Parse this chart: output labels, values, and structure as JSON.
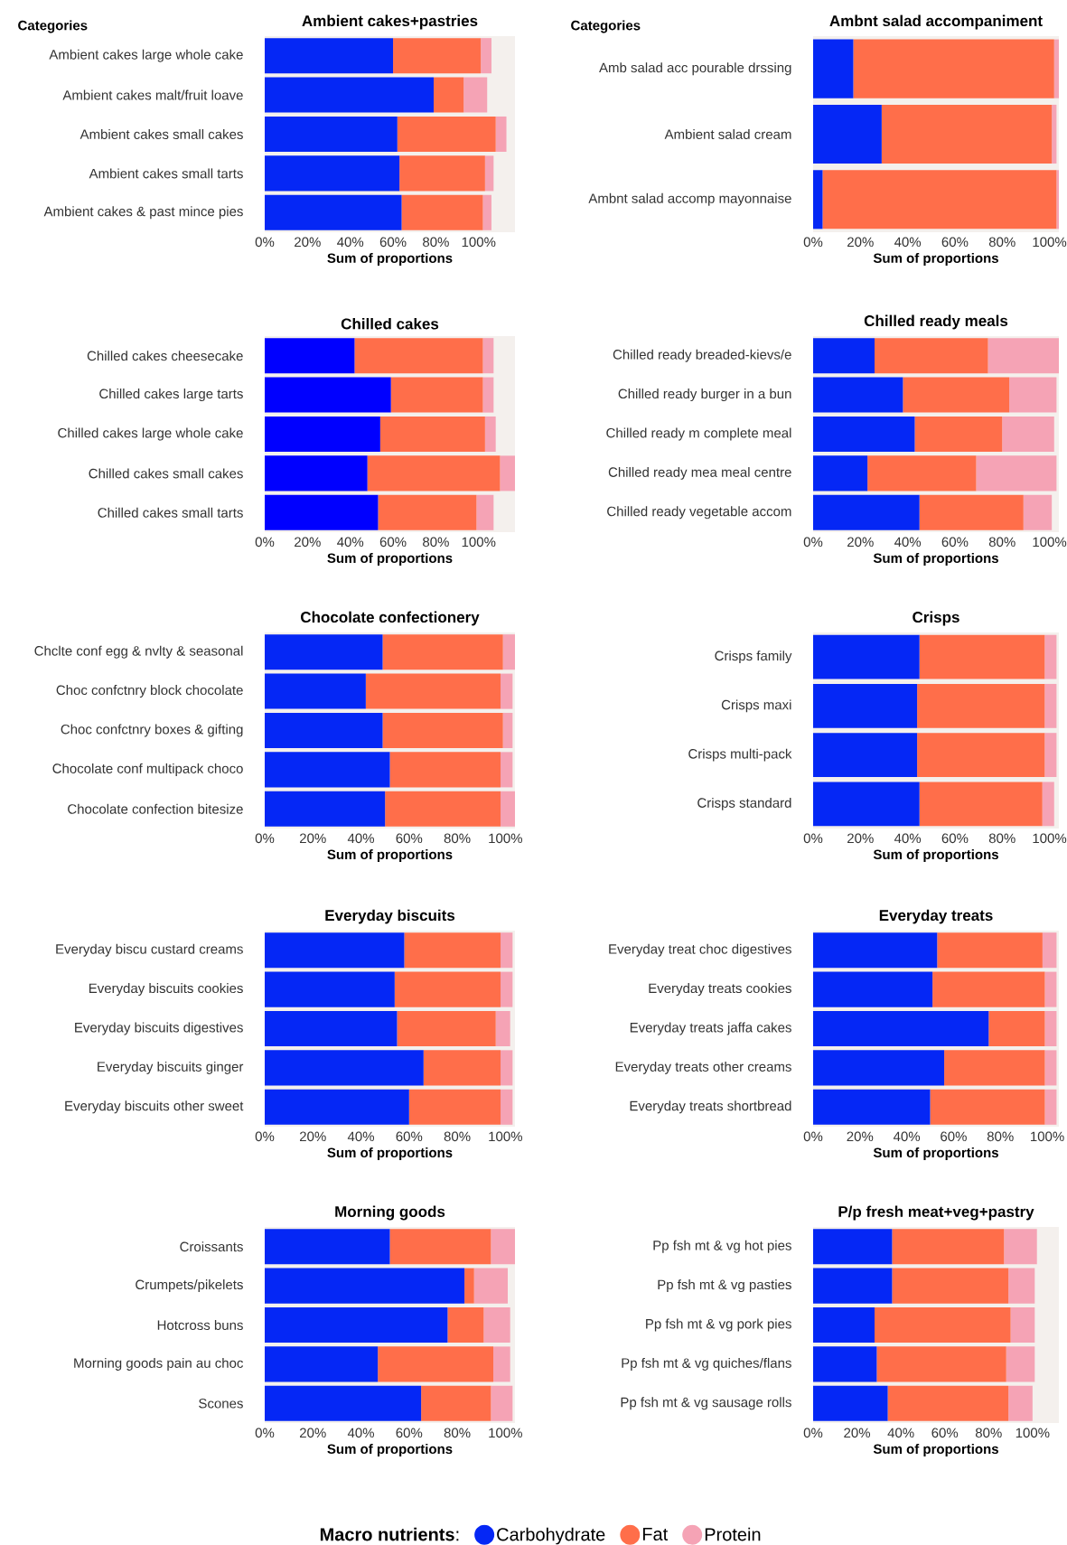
{
  "chart_data": [
    {
      "type": "bar",
      "orientation": "horizontal",
      "stacked": true,
      "title": "Ambient cakes+pastries",
      "xlabel": "Sum of proportions",
      "ylabel": "Categories",
      "categories": [
        "Ambient cakes large whole cake",
        "Ambient cakes malt/fruit loave",
        "Ambient cakes small cakes",
        "Ambient cakes small tarts",
        "Ambient cakes & past mince pies"
      ],
      "xlim": [
        0,
        117
      ],
      "xticks": [
        {
          "value": 0,
          "label": "0%"
        },
        {
          "value": 20,
          "label": "20%"
        },
        {
          "value": 40,
          "label": "40%"
        },
        {
          "value": 60,
          "label": "60%"
        },
        {
          "value": 80,
          "label": "80%"
        },
        {
          "value": 100,
          "label": "100%"
        }
      ],
      "series": [
        {
          "color": "#0527f5",
          "values": [
            60,
            79,
            62,
            63,
            64
          ]
        },
        {
          "color": "#ff6e4a",
          "values": [
            41,
            14,
            46,
            40,
            38
          ]
        },
        {
          "color": "#f5a3b5",
          "values": [
            5,
            11,
            5,
            4,
            4
          ]
        }
      ]
    },
    {
      "type": "bar",
      "orientation": "horizontal",
      "stacked": true,
      "title": "Ambnt salad accompaniment",
      "xlabel": "Sum of proportions",
      "ylabel": "Categories",
      "categories": [
        "Amb salad acc pourable drssing",
        "Ambient salad cream",
        "Ambnt salad accomp mayonnaise"
      ],
      "xlim": [
        0,
        104
      ],
      "xticks": [
        {
          "value": 0,
          "label": "0%"
        },
        {
          "value": 20,
          "label": "20%"
        },
        {
          "value": 40,
          "label": "40%"
        },
        {
          "value": 60,
          "label": "60%"
        },
        {
          "value": 80,
          "label": "80%"
        },
        {
          "value": 100,
          "label": "100%"
        }
      ],
      "series": [
        {
          "color": "#0527f5",
          "values": [
            17,
            29,
            4
          ]
        },
        {
          "color": "#ff6e4a",
          "values": [
            85,
            72,
            99
          ]
        },
        {
          "color": "#f5a3b5",
          "values": [
            2,
            2,
            1
          ]
        }
      ]
    },
    {
      "type": "bar",
      "orientation": "horizontal",
      "stacked": true,
      "title": "Chilled cakes",
      "xlabel": "Sum of proportions",
      "categories": [
        "Chilled cakes cheesecake",
        "Chilled cakes large tarts",
        "Chilled cakes large whole cake",
        "Chilled cakes small cakes",
        "Chilled cakes small tarts"
      ],
      "xlim": [
        0,
        117
      ],
      "xticks": [
        {
          "value": 0,
          "label": "0%"
        },
        {
          "value": 20,
          "label": "20%"
        },
        {
          "value": 40,
          "label": "40%"
        },
        {
          "value": 60,
          "label": "60%"
        },
        {
          "value": 80,
          "label": "80%"
        },
        {
          "value": 100,
          "label": "100%"
        }
      ],
      "series": [
        {
          "color": "#0000ff",
          "values": [
            42,
            59,
            54,
            48,
            53
          ]
        },
        {
          "color": "#ff6e4a",
          "values": [
            60,
            43,
            49,
            62,
            46
          ]
        },
        {
          "color": "#f5a3b5",
          "values": [
            5,
            5,
            5,
            7,
            8
          ]
        }
      ]
    },
    {
      "type": "bar",
      "orientation": "horizontal",
      "stacked": true,
      "title": "Chilled ready meals",
      "xlabel": "Sum of proportions",
      "categories": [
        "Chilled ready breaded-kievs/e",
        "Chilled ready burger in a bun",
        "Chilled ready m complete meal",
        "Chilled ready mea meal centre",
        "Chilled ready vegetable accom"
      ],
      "xlim": [
        0,
        104
      ],
      "xticks": [
        {
          "value": 0,
          "label": "0%"
        },
        {
          "value": 20,
          "label": "20%"
        },
        {
          "value": 40,
          "label": "40%"
        },
        {
          "value": 60,
          "label": "60%"
        },
        {
          "value": 80,
          "label": "80%"
        },
        {
          "value": 100,
          "label": "100%"
        }
      ],
      "series": [
        {
          "color": "#0527f5",
          "values": [
            26,
            38,
            43,
            23,
            45
          ]
        },
        {
          "color": "#ff6e4a",
          "values": [
            48,
            45,
            37,
            46,
            44
          ]
        },
        {
          "color": "#f5a3b5",
          "values": [
            30,
            20,
            22,
            34,
            12
          ]
        }
      ]
    },
    {
      "type": "bar",
      "orientation": "horizontal",
      "stacked": true,
      "title": "Chocolate confectionery",
      "xlabel": "Sum of proportions",
      "categories": [
        "Chclte conf egg & nvlty & seasonal",
        "Choc confctnry block chocolate",
        "Choc confctnry boxes & gifting",
        "Chocolate conf multipack choco",
        "Chocolate confection bitesize"
      ],
      "xlim": [
        0,
        104
      ],
      "xticks": [
        {
          "value": 0,
          "label": "0%"
        },
        {
          "value": 20,
          "label": "20%"
        },
        {
          "value": 40,
          "label": "40%"
        },
        {
          "value": 60,
          "label": "60%"
        },
        {
          "value": 80,
          "label": "80%"
        },
        {
          "value": 100,
          "label": "100%"
        }
      ],
      "series": [
        {
          "color": "#0527f5",
          "values": [
            49,
            42,
            49,
            52,
            50
          ]
        },
        {
          "color": "#ff6e4a",
          "values": [
            50,
            56,
            50,
            46,
            48
          ]
        },
        {
          "color": "#f5a3b5",
          "values": [
            5,
            5,
            4,
            5,
            6
          ]
        }
      ]
    },
    {
      "type": "bar",
      "orientation": "horizontal",
      "stacked": true,
      "title": "Crisps",
      "xlabel": "Sum of proportions",
      "categories": [
        "Crisps family",
        "Crisps maxi",
        "Crisps multi-pack",
        "Crisps standard"
      ],
      "xlim": [
        0,
        104
      ],
      "xticks": [
        {
          "value": 0,
          "label": "0%"
        },
        {
          "value": 20,
          "label": "20%"
        },
        {
          "value": 40,
          "label": "40%"
        },
        {
          "value": 60,
          "label": "60%"
        },
        {
          "value": 80,
          "label": "80%"
        },
        {
          "value": 100,
          "label": "100%"
        }
      ],
      "series": [
        {
          "color": "#0527f5",
          "values": [
            45,
            44,
            44,
            45
          ]
        },
        {
          "color": "#ff6e4a",
          "values": [
            53,
            54,
            54,
            52
          ]
        },
        {
          "color": "#f5a3b5",
          "values": [
            5,
            5,
            5,
            5
          ]
        }
      ]
    },
    {
      "type": "bar",
      "orientation": "horizontal",
      "stacked": true,
      "title": "Everyday biscuits",
      "xlabel": "Sum of proportions",
      "categories": [
        "Everyday biscu custard creams",
        "Everyday biscuits cookies",
        "Everyday biscuits digestives",
        "Everyday biscuits ginger",
        "Everyday biscuits other sweet"
      ],
      "xlim": [
        0,
        104
      ],
      "xticks": [
        {
          "value": 0,
          "label": "0%"
        },
        {
          "value": 20,
          "label": "20%"
        },
        {
          "value": 40,
          "label": "40%"
        },
        {
          "value": 60,
          "label": "60%"
        },
        {
          "value": 80,
          "label": "80%"
        },
        {
          "value": 100,
          "label": "100%"
        }
      ],
      "series": [
        {
          "color": "#0527f5",
          "values": [
            58,
            54,
            55,
            66,
            60
          ]
        },
        {
          "color": "#ff6e4a",
          "values": [
            40,
            44,
            41,
            32,
            38
          ]
        },
        {
          "color": "#f5a3b5",
          "values": [
            5,
            5,
            6,
            5,
            5
          ]
        }
      ]
    },
    {
      "type": "bar",
      "orientation": "horizontal",
      "stacked": true,
      "title": "Everyday treats",
      "xlabel": "Sum of proportions",
      "categories": [
        "Everyday treat choc digestives",
        "Everyday treats cookies",
        "Everyday treats jaffa cakes",
        "Everyday treats other creams",
        "Everyday treats shortbread"
      ],
      "xlim": [
        0,
        105
      ],
      "xticks": [
        {
          "value": 0,
          "label": "0%"
        },
        {
          "value": 20,
          "label": "20%"
        },
        {
          "value": 40,
          "label": "40%"
        },
        {
          "value": 60,
          "label": "60%"
        },
        {
          "value": 80,
          "label": "80%"
        },
        {
          "value": 100,
          "label": "100%"
        }
      ],
      "series": [
        {
          "color": "#0527f5",
          "values": [
            53,
            51,
            75,
            56,
            50
          ]
        },
        {
          "color": "#ff6e4a",
          "values": [
            45,
            48,
            24,
            43,
            49
          ]
        },
        {
          "color": "#f5a3b5",
          "values": [
            6,
            5,
            5,
            5,
            5
          ]
        }
      ]
    },
    {
      "type": "bar",
      "orientation": "horizontal",
      "stacked": true,
      "title": "Morning goods",
      "xlabel": "Sum of proportions",
      "categories": [
        "Croissants",
        "Crumpets/pikelets",
        "Hotcross buns",
        "Morning goods pain au choc",
        "Scones"
      ],
      "xlim": [
        0,
        104
      ],
      "xticks": [
        {
          "value": 0,
          "label": "0%"
        },
        {
          "value": 20,
          "label": "20%"
        },
        {
          "value": 40,
          "label": "40%"
        },
        {
          "value": 60,
          "label": "60%"
        },
        {
          "value": 80,
          "label": "80%"
        },
        {
          "value": 100,
          "label": "100%"
        }
      ],
      "series": [
        {
          "color": "#0527f5",
          "values": [
            52,
            83,
            76,
            47,
            65
          ]
        },
        {
          "color": "#ff6e4a",
          "values": [
            42,
            4,
            15,
            48,
            29
          ]
        },
        {
          "color": "#f5a3b5",
          "values": [
            10,
            14,
            11,
            7,
            9
          ]
        }
      ]
    },
    {
      "type": "bar",
      "orientation": "horizontal",
      "stacked": true,
      "title": "P/p fresh meat+veg+pastry",
      "xlabel": "Sum of proportions",
      "categories": [
        "Pp fsh mt & vg hot pies",
        "Pp fsh mt & vg pasties",
        "Pp fsh mt & vg pork pies",
        "Pp fsh mt & vg quiches/flans",
        "Pp fsh mt & vg sausage rolls"
      ],
      "xlim": [
        0,
        112
      ],
      "xticks": [
        {
          "value": 0,
          "label": "0%"
        },
        {
          "value": 20,
          "label": "20%"
        },
        {
          "value": 40,
          "label": "40%"
        },
        {
          "value": 60,
          "label": "60%"
        },
        {
          "value": 80,
          "label": "80%"
        },
        {
          "value": 100,
          "label": "100%"
        }
      ],
      "legend": "bottom",
      "legend_title": "**Macro nutrients**:",
      "series": [
        {
          "name": "Carbohydrate",
          "color": "#0527f5",
          "values": [
            36,
            36,
            28,
            29,
            34
          ]
        },
        {
          "name": "Fat",
          "color": "#ff6e4a",
          "values": [
            51,
            53,
            62,
            59,
            55
          ]
        },
        {
          "name": "Protein",
          "color": "#f5a3b5",
          "values": [
            15,
            12,
            11,
            13,
            11
          ]
        }
      ]
    }
  ]
}
